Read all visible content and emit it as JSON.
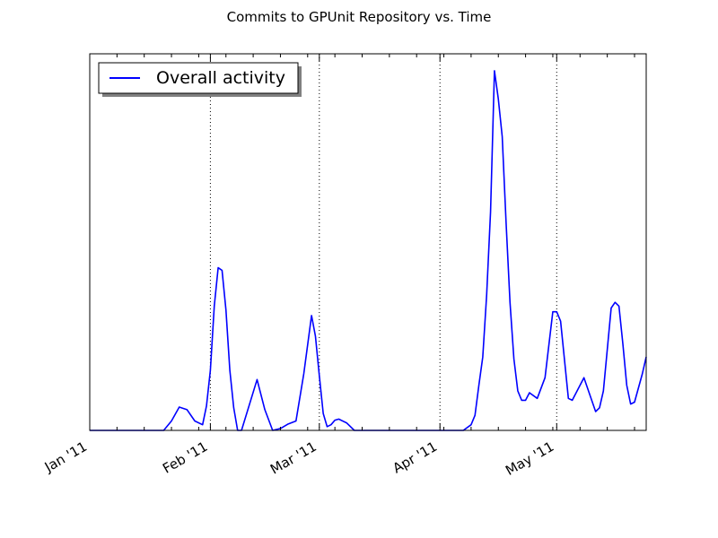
{
  "chart_data": {
    "type": "line",
    "title": "Commits to GPUnit Repository vs. Time",
    "xlabel": "",
    "ylabel": "",
    "x_range": [
      "2011-01-01",
      "2011-05-24"
    ],
    "y_range": [
      0,
      100
    ],
    "y_ticks_shown": false,
    "grid": "vertical dotted lines at month ticks",
    "legend_position": "top-left",
    "x_tick_labels": [
      {
        "date": "2011-01-01",
        "label": "Jan '11"
      },
      {
        "date": "2011-02-01",
        "label": "Feb '11"
      },
      {
        "date": "2011-03-01",
        "label": "Mar '11"
      },
      {
        "date": "2011-04-01",
        "label": "Apr '11"
      },
      {
        "date": "2011-05-01",
        "label": "May '11"
      }
    ],
    "series": [
      {
        "name": "Overall activity",
        "color": "#0000ff",
        "points": [
          [
            "2011-01-01",
            0
          ],
          [
            "2011-01-20",
            0
          ],
          [
            "2011-01-22",
            2.5
          ],
          [
            "2011-01-24",
            6.2
          ],
          [
            "2011-01-26",
            5.5
          ],
          [
            "2011-01-28",
            2.5
          ],
          [
            "2011-01-30",
            1.5
          ],
          [
            "2011-01-31",
            6.5
          ],
          [
            "2011-02-01",
            16
          ],
          [
            "2011-02-02",
            33
          ],
          [
            "2011-02-03",
            43.2
          ],
          [
            "2011-02-04",
            42.5
          ],
          [
            "2011-02-05",
            32
          ],
          [
            "2011-02-06",
            16
          ],
          [
            "2011-02-07",
            6
          ],
          [
            "2011-02-08",
            0
          ],
          [
            "2011-02-09",
            0
          ],
          [
            "2011-02-13",
            13.5
          ],
          [
            "2011-02-15",
            5.5
          ],
          [
            "2011-02-17",
            0
          ],
          [
            "2011-02-19",
            0.5
          ],
          [
            "2011-02-21",
            1.7
          ],
          [
            "2011-02-23",
            2.5
          ],
          [
            "2011-02-25",
            15
          ],
          [
            "2011-02-27",
            30.5
          ],
          [
            "2011-02-28",
            25
          ],
          [
            "2011-03-01",
            14.5
          ],
          [
            "2011-03-02",
            4.5
          ],
          [
            "2011-03-03",
            1
          ],
          [
            "2011-03-04",
            1.5
          ],
          [
            "2011-03-05",
            2.7
          ],
          [
            "2011-03-06",
            3
          ],
          [
            "2011-03-08",
            2
          ],
          [
            "2011-03-10",
            0
          ],
          [
            "2011-04-07",
            0
          ],
          [
            "2011-04-09",
            1.5
          ],
          [
            "2011-04-10",
            4
          ],
          [
            "2011-04-11",
            12
          ],
          [
            "2011-04-12",
            19.5
          ],
          [
            "2011-04-13",
            36
          ],
          [
            "2011-04-14",
            58
          ],
          [
            "2011-04-15",
            95.5
          ],
          [
            "2011-04-16",
            88
          ],
          [
            "2011-04-17",
            78
          ],
          [
            "2011-04-18",
            55
          ],
          [
            "2011-04-19",
            34
          ],
          [
            "2011-04-20",
            19
          ],
          [
            "2011-04-21",
            10.5
          ],
          [
            "2011-04-22",
            8
          ],
          [
            "2011-04-23",
            8
          ],
          [
            "2011-04-24",
            10
          ],
          [
            "2011-04-26",
            8.5
          ],
          [
            "2011-04-28",
            14
          ],
          [
            "2011-04-30",
            31.5
          ],
          [
            "2011-05-01",
            31.5
          ],
          [
            "2011-05-02",
            29
          ],
          [
            "2011-05-04",
            8.5
          ],
          [
            "2011-05-05",
            8
          ],
          [
            "2011-05-08",
            14
          ],
          [
            "2011-05-11",
            5
          ],
          [
            "2011-05-12",
            6
          ],
          [
            "2011-05-13",
            10.5
          ],
          [
            "2011-05-15",
            32.5
          ],
          [
            "2011-05-16",
            34
          ],
          [
            "2011-05-17",
            33
          ],
          [
            "2011-05-18",
            23
          ],
          [
            "2011-05-19",
            12
          ],
          [
            "2011-05-20",
            7
          ],
          [
            "2011-05-21",
            7.5
          ],
          [
            "2011-05-23",
            15
          ],
          [
            "2011-05-24",
            19.5
          ]
        ]
      }
    ]
  }
}
